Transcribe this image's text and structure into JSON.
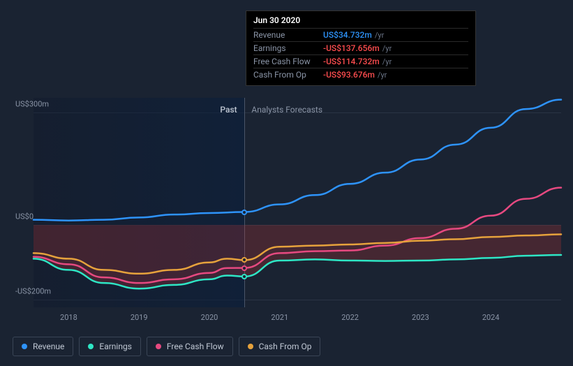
{
  "chart": {
    "type": "line",
    "background_color": "#1a2332",
    "grid_color": "#2a3444",
    "label_color": "#8a94a6",
    "label_fontsize": 11,
    "x_years": [
      2018,
      2019,
      2020,
      2021,
      2022,
      2023,
      2024
    ],
    "x_range": [
      2017.5,
      2025
    ],
    "y_ticks": [
      {
        "value": 300,
        "label": "US$300m"
      },
      {
        "value": 0,
        "label": "US$0"
      },
      {
        "value": -200,
        "label": "-US$200m"
      }
    ],
    "y_range": [
      -220,
      340
    ],
    "divider_x": 2020.5,
    "region_labels": {
      "past": "Past",
      "forecast": "Analysts Forecasts"
    },
    "series": [
      {
        "id": "revenue",
        "label": "Revenue",
        "color": "#2e93fa",
        "points": [
          [
            2017.5,
            14
          ],
          [
            2018,
            12
          ],
          [
            2018.5,
            14
          ],
          [
            2019,
            20
          ],
          [
            2019.5,
            28
          ],
          [
            2020,
            32
          ],
          [
            2020.5,
            34.732
          ],
          [
            2021,
            55
          ],
          [
            2021.5,
            80
          ],
          [
            2022,
            110
          ],
          [
            2022.5,
            140
          ],
          [
            2023,
            175
          ],
          [
            2023.5,
            215
          ],
          [
            2024,
            260
          ],
          [
            2024.5,
            310
          ],
          [
            2025,
            335
          ]
        ]
      },
      {
        "id": "earnings",
        "label": "Earnings",
        "color": "#2ee6c5",
        "points": [
          [
            2017.5,
            -90
          ],
          [
            2018,
            -120
          ],
          [
            2018.5,
            -155
          ],
          [
            2019,
            -170
          ],
          [
            2019.5,
            -160
          ],
          [
            2020,
            -145
          ],
          [
            2020.25,
            -135
          ],
          [
            2020.5,
            -137.656
          ],
          [
            2021,
            -95
          ],
          [
            2021.5,
            -92
          ],
          [
            2022,
            -95
          ],
          [
            2022.5,
            -96
          ],
          [
            2023,
            -95
          ],
          [
            2023.5,
            -92
          ],
          [
            2024,
            -88
          ],
          [
            2024.5,
            -82
          ],
          [
            2025,
            -80
          ]
        ]
      },
      {
        "id": "fcf",
        "label": "Free Cash Flow",
        "color": "#e64980",
        "points": [
          [
            2017.5,
            -85
          ],
          [
            2018,
            -105
          ],
          [
            2018.5,
            -140
          ],
          [
            2019,
            -155
          ],
          [
            2019.5,
            -145
          ],
          [
            2020,
            -128
          ],
          [
            2020.25,
            -115
          ],
          [
            2020.5,
            -114.732
          ],
          [
            2021,
            -75
          ],
          [
            2021.5,
            -70
          ],
          [
            2022,
            -68
          ],
          [
            2022.5,
            -55
          ],
          [
            2023,
            -35
          ],
          [
            2023.5,
            -10
          ],
          [
            2024,
            25
          ],
          [
            2024.5,
            70
          ],
          [
            2025,
            100
          ]
        ]
      },
      {
        "id": "cfo",
        "label": "Cash From Op",
        "color": "#e6a23c",
        "points": [
          [
            2017.5,
            -75
          ],
          [
            2018,
            -90
          ],
          [
            2018.5,
            -120
          ],
          [
            2019,
            -130
          ],
          [
            2019.5,
            -120
          ],
          [
            2020,
            -100
          ],
          [
            2020.25,
            -90
          ],
          [
            2020.5,
            -93.676
          ],
          [
            2021,
            -58
          ],
          [
            2021.5,
            -55
          ],
          [
            2022,
            -52
          ],
          [
            2022.5,
            -48
          ],
          [
            2023,
            -42
          ],
          [
            2023.5,
            -38
          ],
          [
            2024,
            -32
          ],
          [
            2024.5,
            -28
          ],
          [
            2025,
            -25
          ]
        ]
      }
    ],
    "neg_fill_color": "rgba(200,50,50,0.25)"
  },
  "tooltip": {
    "date": "Jun 30 2020",
    "rows": [
      {
        "label": "Revenue",
        "value": "US$34.732m",
        "unit": "/yr",
        "color": "#2e93fa"
      },
      {
        "label": "Earnings",
        "value": "-US$137.656m",
        "unit": "/yr",
        "color": "#ff4d4f"
      },
      {
        "label": "Free Cash Flow",
        "value": "-US$114.732m",
        "unit": "/yr",
        "color": "#ff4d4f"
      },
      {
        "label": "Cash From Op",
        "value": "-US$93.676m",
        "unit": "/yr",
        "color": "#ff4d4f"
      }
    ]
  },
  "legend": [
    {
      "id": "revenue",
      "label": "Revenue",
      "color": "#2e93fa"
    },
    {
      "id": "earnings",
      "label": "Earnings",
      "color": "#2ee6c5"
    },
    {
      "id": "fcf",
      "label": "Free Cash Flow",
      "color": "#e64980"
    },
    {
      "id": "cfo",
      "label": "Cash From Op",
      "color": "#e6a23c"
    }
  ]
}
